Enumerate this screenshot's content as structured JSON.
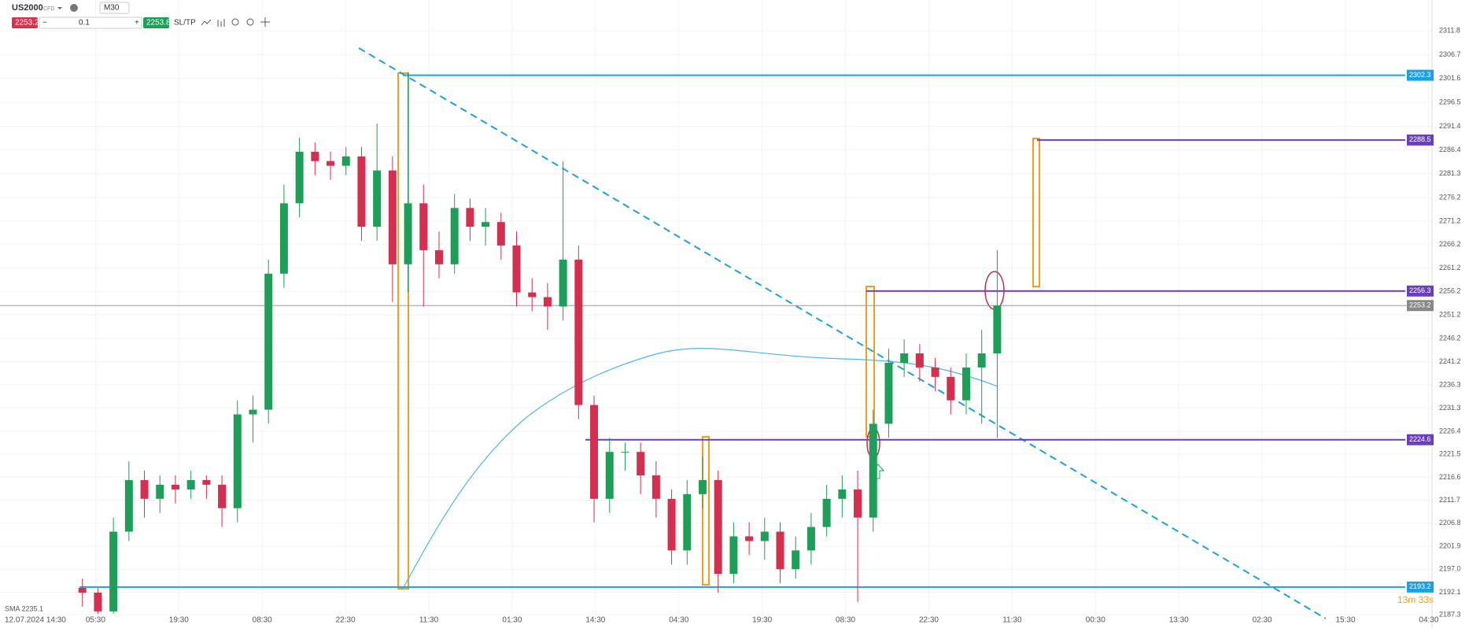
{
  "toolbar": {
    "symbol": "US2000",
    "symbol_type": "CFD",
    "timeframe": "M30",
    "sell_price": "2253.2",
    "volume": "0.1",
    "buy_price": "2253.8",
    "sl_tp": "SL/TP"
  },
  "indicator_label": "SMA 2235.1",
  "timer": "13m 33s",
  "chart_data": {
    "type": "candlestick",
    "x_labels": [
      "12.07.2024 14:30",
      "05:30",
      "19:30",
      "08:30",
      "22:30",
      "11:30",
      "01:30",
      "14:30",
      "04:30",
      "19:30",
      "08:30",
      "22:30",
      "11:30",
      "00:30",
      "13:30",
      "02:30",
      "15:30",
      "04:30"
    ],
    "open": [
      2193,
      2192,
      2188,
      2205,
      2216,
      2212,
      2215,
      2214,
      2216,
      2215,
      2210,
      2230,
      2231,
      2260,
      2275,
      2286,
      2284,
      2283,
      2285,
      2270,
      2282,
      2262,
      2275,
      2265,
      2262,
      2274,
      2270,
      2271,
      2266,
      2256,
      2255,
      2253,
      2263,
      2232,
      2212,
      2222,
      2222,
      2217,
      2212,
      2201,
      2213,
      2216,
      2196,
      2204,
      2203,
      2205,
      2197,
      2201,
      2206,
      2212,
      2214,
      2208,
      2228,
      2241,
      2243,
      2240,
      2238,
      2233,
      2240,
      2243
    ],
    "high": [
      2195,
      2193,
      2208,
      2220,
      2218,
      2217,
      2217,
      2218,
      2217,
      2217,
      2233,
      2234,
      2263,
      2279,
      2289,
      2288,
      2286,
      2287,
      2287,
      2292,
      2285,
      2303,
      2279,
      2269,
      2277,
      2276,
      2274,
      2273,
      2269,
      2259,
      2258,
      2284,
      2266,
      2234,
      2225,
      2224,
      2224,
      2220,
      2214,
      2216,
      2221,
      2218,
      2207,
      2207,
      2208,
      2207,
      2204,
      2209,
      2215,
      2217,
      2218,
      2231,
      2244,
      2246,
      2245,
      2242,
      2240,
      2243,
      2248,
      2265
    ],
    "low": [
      2189,
      2187.5,
      2187.5,
      2203,
      2208,
      2209,
      2211,
      2212,
      2212,
      2206,
      2207,
      2224,
      2228,
      2257,
      2272,
      2281,
      2280,
      2281,
      2267,
      2267,
      2254,
      2256,
      2253,
      2259,
      2260,
      2267,
      2266,
      2263,
      2253,
      2252,
      2248,
      2250,
      2229,
      2207,
      2209,
      2218,
      2213,
      2208,
      2198,
      2198,
      2210,
      2192,
      2194,
      2200,
      2199,
      2194,
      2195,
      2198,
      2204,
      2208,
      2190,
      2205,
      2225,
      2238,
      2237,
      2235,
      2230,
      2230,
      2228,
      2225
    ],
    "close": [
      2192,
      2188,
      2205,
      2216,
      2212,
      2215,
      2214,
      2216,
      2215,
      2210,
      2230,
      2231,
      2260,
      2275,
      2286,
      2284,
      2283,
      2285,
      2270,
      2282,
      2262,
      2275,
      2265,
      2262,
      2274,
      2270,
      2271,
      2266,
      2256,
      2255,
      2253,
      2263,
      2232,
      2212,
      2222,
      2222,
      2217,
      2212,
      2201,
      2213,
      2216,
      2196,
      2204,
      2203,
      2205,
      2197,
      2201,
      2206,
      2212,
      2214,
      2208,
      2228,
      2241,
      2243,
      2240,
      2238,
      2233,
      2240,
      2243,
      2253.2
    ],
    "up_color": "#1e9e58",
    "down_color": "#d32f4f",
    "ylim": [
      2187.3,
      2311.8
    ],
    "yticks": [
      2311.8,
      2306.7,
      2301.6,
      2296.5,
      2291.4,
      2286.4,
      2281.3,
      2276.2,
      2271.2,
      2266.2,
      2261.2,
      2256.2,
      2251.2,
      2246.2,
      2241.2,
      2236.3,
      2231.3,
      2226.4,
      2221.5,
      2216.6,
      2211.7,
      2206.8,
      2201.9,
      {
        "value": 2197.0,
        "label": "2197.0"
      },
      2192.1,
      2187.3
    ],
    "grid": true,
    "current_price": 2253.2,
    "levels": [
      {
        "value": 2302.3,
        "color": "#1ba1e2"
      },
      {
        "value": 2288.5,
        "color": "#6a3fbf"
      },
      {
        "value": 2256.3,
        "color": "#6a3fbf"
      },
      {
        "value": 2224.6,
        "color": "#6a3fbf"
      },
      {
        "value": 2193.2,
        "color": "#1ba1e2"
      }
    ]
  }
}
